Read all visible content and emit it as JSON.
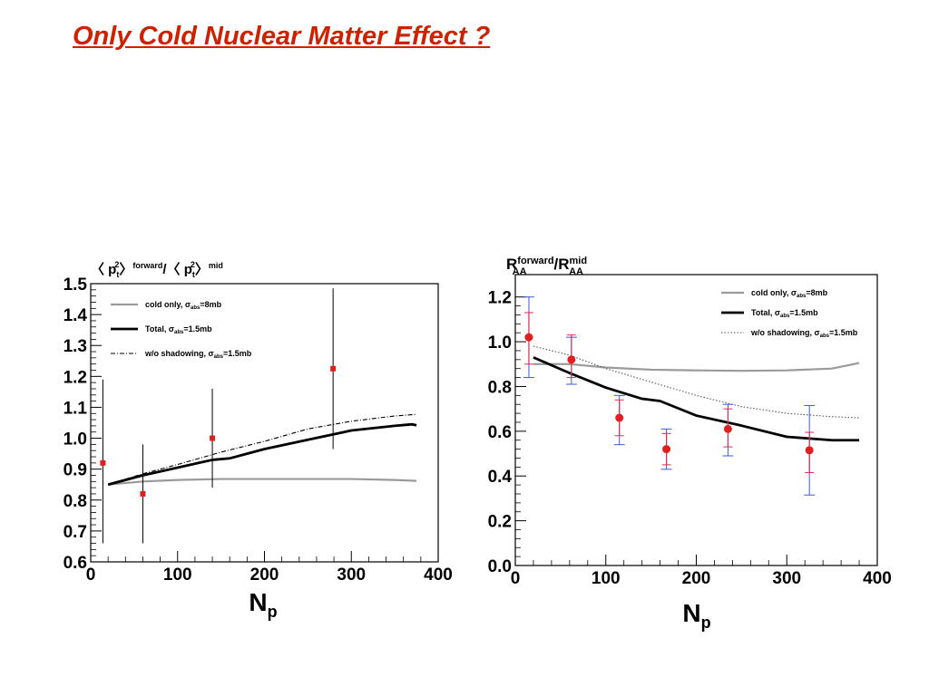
{
  "slide": {
    "title": "Only Cold Nuclear Matter Effect ?",
    "title_color": "#cc2200"
  },
  "chart_data": [
    {
      "type": "line",
      "ylabel": "〈p_t^2〉^forward/〈p_t^2〉^mid",
      "ylabel_parts": {
        "open": "〈 p",
        "sup1": "2",
        "sub1": "t",
        "close1": "〉",
        "tag1": "forward",
        "slash": "/〈 p",
        "sup2": "2",
        "sub2": "t",
        "close2": "〉",
        "tag2": "mid"
      },
      "xlabel": "N",
      "xlabel_sub": "p",
      "xlim": [
        0,
        400
      ],
      "ylim": [
        0.6,
        1.5
      ],
      "xticks": [
        0,
        100,
        200,
        300,
        400
      ],
      "xtick_labels": [
        "0",
        "100",
        "200",
        "300",
        "400"
      ],
      "yticks": [
        0.6,
        0.7,
        0.8,
        0.9,
        1.0,
        1.1,
        1.2,
        1.3,
        1.4,
        1.5
      ],
      "ytick_labels": [
        "0.6",
        "0.7",
        "0.8",
        "0.9",
        "1.0",
        "1.1",
        "1.2",
        "1.3",
        "1.4",
        "1.5"
      ],
      "legend_position": "top-left",
      "series": [
        {
          "name": "cold only, σ_abs=8mb",
          "legend_main": "cold only, σ",
          "legend_sub": "abs",
          "legend_tail": "=8mb",
          "style": "solid-gray",
          "color": "#9a9a9a",
          "x": [
            20,
            60,
            100,
            150,
            200,
            250,
            300,
            350,
            375
          ],
          "y": [
            0.85,
            0.86,
            0.865,
            0.868,
            0.868,
            0.868,
            0.868,
            0.865,
            0.862
          ]
        },
        {
          "name": "Total, σ_abs=1.5mb",
          "legend_main": "Total, σ",
          "legend_sub": "abs",
          "legend_tail": "=1.5mb",
          "style": "solid-thick",
          "color": "#000000",
          "x": [
            20,
            60,
            100,
            140,
            160,
            200,
            250,
            300,
            350,
            370,
            375
          ],
          "y": [
            0.85,
            0.88,
            0.905,
            0.93,
            0.935,
            0.965,
            0.995,
            1.025,
            1.04,
            1.045,
            1.042
          ]
        },
        {
          "name": "w/o shadowing, σ_abs=1.5mb",
          "legend_main": "w/o shadowing, σ",
          "legend_sub": "abs",
          "legend_tail": "=1.5mb",
          "style": "dash-dot",
          "color": "#000000",
          "x": [
            20,
            60,
            100,
            150,
            200,
            250,
            300,
            350,
            375
          ],
          "y": [
            0.85,
            0.885,
            0.915,
            0.955,
            0.99,
            1.03,
            1.055,
            1.072,
            1.077
          ]
        }
      ],
      "points": {
        "color": "#e02020",
        "marker": "square",
        "x": [
          14,
          60,
          140,
          279
        ],
        "y": [
          0.92,
          0.82,
          1.0,
          1.225
        ],
        "err_low": [
          0.26,
          0.16,
          0.16,
          0.26
        ],
        "err_high": [
          0.27,
          0.16,
          0.16,
          0.26
        ]
      }
    },
    {
      "type": "line",
      "ylabel": "R_AA^forward/R_AA^mid",
      "ylabel_parts": {
        "r1": "R",
        "sup1": "forward",
        "sub1": "AA",
        "slash": "/R",
        "sup2": "mid",
        "sub2": "AA"
      },
      "xlabel": "N",
      "xlabel_sub": "p",
      "xlim": [
        0,
        400
      ],
      "ylim": [
        0.0,
        1.3
      ],
      "xticks": [
        0,
        100,
        200,
        300,
        400
      ],
      "xtick_labels": [
        "0",
        "100",
        "200",
        "300",
        "400"
      ],
      "yticks": [
        0.0,
        0.2,
        0.4,
        0.6,
        0.8,
        1.0,
        1.2
      ],
      "ytick_labels": [
        "0.0",
        "0.2",
        "0.4",
        "0.6",
        "0.8",
        "1.0",
        "1.2"
      ],
      "legend_position": "top-right",
      "series": [
        {
          "name": "cold only, σ_abs=8mb",
          "legend_main": "cold only, σ",
          "legend_sub": "abs",
          "legend_tail": "=8mb",
          "style": "solid-gray",
          "color": "#9a9a9a",
          "x": [
            20,
            60,
            100,
            150,
            200,
            250,
            300,
            350,
            380
          ],
          "y": [
            0.9,
            0.9,
            0.885,
            0.875,
            0.872,
            0.87,
            0.872,
            0.88,
            0.905
          ]
        },
        {
          "name": "Total, σ_abs=1.5mb",
          "legend_main": "Total, σ",
          "legend_sub": "abs",
          "legend_tail": "=1.5mb",
          "style": "solid-thick",
          "color": "#000000",
          "x": [
            20,
            60,
            100,
            140,
            160,
            200,
            250,
            300,
            350,
            380
          ],
          "y": [
            0.93,
            0.86,
            0.795,
            0.745,
            0.735,
            0.67,
            0.625,
            0.575,
            0.56,
            0.56
          ]
        },
        {
          "name": "w/o shadowing, σ_abs=1.5mb",
          "legend_main": "w/o shadowing, σ",
          "legend_sub": "abs",
          "legend_tail": "=1.5mb",
          "style": "dotted",
          "color": "#555555",
          "x": [
            20,
            60,
            100,
            150,
            200,
            250,
            300,
            350,
            380
          ],
          "y": [
            0.98,
            0.94,
            0.88,
            0.82,
            0.76,
            0.71,
            0.68,
            0.665,
            0.66
          ]
        }
      ],
      "points": {
        "color": "#e02020",
        "marker": "circle",
        "x": [
          15,
          62,
          115,
          167,
          235,
          325
        ],
        "y": [
          1.02,
          0.92,
          0.66,
          0.52,
          0.61,
          0.515
        ],
        "err_low": [
          0.18,
          0.11,
          0.12,
          0.09,
          0.12,
          0.2
        ],
        "err_high": [
          0.18,
          0.1,
          0.1,
          0.09,
          0.11,
          0.2
        ],
        "sys_low": [
          0.12,
          0.08,
          0.08,
          0.07,
          0.08,
          0.1
        ],
        "sys_high": [
          0.11,
          0.11,
          0.08,
          0.07,
          0.09,
          0.08
        ],
        "stat_color": "#3c5ad8",
        "sys_color": "#d83050"
      }
    }
  ]
}
